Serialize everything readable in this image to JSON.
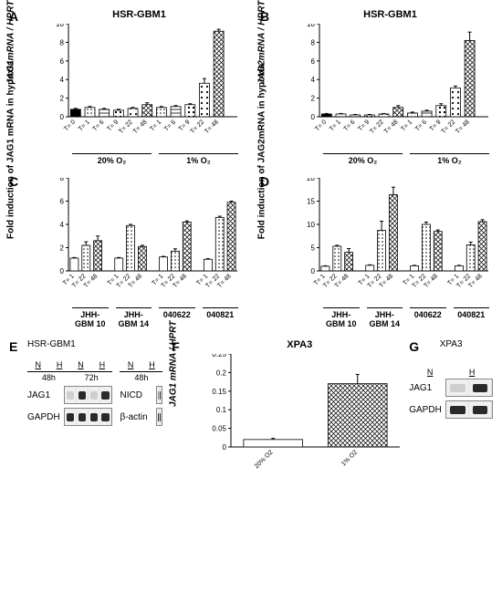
{
  "panelA": {
    "label": "A",
    "title": "HSR-GBM1",
    "ylabel": "JAG1mRNA / HPRT",
    "type": "bar",
    "ylim": [
      0,
      10
    ],
    "ytick_step": 2,
    "groups": [
      "20% O₂",
      "1% O₂"
    ],
    "ticks": [
      "T= 0",
      "T= 1",
      "T= 6",
      "T= 9",
      "T= 22",
      "T= 48",
      "T= 1",
      "T= 6",
      "T= 9",
      "T= 22",
      "T= 48"
    ],
    "values": [
      0.8,
      1.0,
      0.8,
      0.7,
      0.9,
      1.3,
      1.0,
      1.1,
      1.3,
      3.6,
      9.2
    ],
    "err": [
      0.1,
      0.1,
      0.1,
      0.1,
      0.1,
      0.2,
      0.1,
      0.1,
      0.1,
      0.5,
      0.2
    ],
    "patterns": [
      "solid",
      "dots",
      "hlines",
      "squares",
      "ldots",
      "cross",
      "dots",
      "hlines",
      "squares",
      "ldots",
      "cross"
    ],
    "colors": {
      "bar_fill": "#ffffff",
      "bar_stroke": "#000000",
      "bg": "#ffffff",
      "axis": "#000000"
    },
    "bar_width": 0.7,
    "label_fontsize": 9
  },
  "panelB": {
    "label": "B",
    "title": "HSR-GBM1",
    "ylabel": "JAG2mRNA / HPRT",
    "type": "bar",
    "ylim": [
      0,
      10
    ],
    "ytick_step": 2,
    "groups": [
      "20% O₂",
      "1% O₂"
    ],
    "ticks": [
      "T= 0",
      "T= 1",
      "T= 6",
      "T= 9",
      "T= 22",
      "T= 48",
      "T= 1",
      "T= 6",
      "T= 9",
      "T= 22",
      "T= 48"
    ],
    "values": [
      0.3,
      0.3,
      0.2,
      0.2,
      0.3,
      1.0,
      0.4,
      0.6,
      1.2,
      3.1,
      8.2
    ],
    "err": [
      0.05,
      0.05,
      0.05,
      0.05,
      0.05,
      0.2,
      0.1,
      0.1,
      0.2,
      0.2,
      0.9
    ],
    "patterns": [
      "solid",
      "dots",
      "hlines",
      "squares",
      "ldots",
      "cross",
      "dots",
      "hlines",
      "squares",
      "ldots",
      "cross"
    ],
    "colors": {
      "bar_fill": "#ffffff",
      "bar_stroke": "#000000",
      "bg": "#ffffff",
      "axis": "#000000"
    },
    "bar_width": 0.7,
    "label_fontsize": 9
  },
  "panelC": {
    "label": "C",
    "ylabel": "Fold induction of JAG1 mRNA in hypoxia",
    "type": "bar",
    "ylim": [
      0,
      8
    ],
    "ytick_step": 2,
    "groups": [
      "JHH-GBM 10",
      "JHH-GBM 14",
      "040622",
      "040821"
    ],
    "ticks": [
      "T= 1",
      "T= 22",
      "T= 48",
      "T= 1",
      "T= 22",
      "T= 48",
      "T= 1",
      "T= 22",
      "T= 48",
      "T= 1",
      "T= 22",
      "T= 48"
    ],
    "values": [
      1.1,
      2.2,
      2.6,
      1.1,
      3.9,
      2.1,
      1.2,
      1.7,
      4.2,
      1.0,
      4.6,
      5.9
    ],
    "err": [
      0.05,
      0.3,
      0.4,
      0.05,
      0.1,
      0.1,
      0.05,
      0.2,
      0.1,
      0.05,
      0.1,
      0.1
    ],
    "patterns": [
      "open",
      "dots",
      "cross",
      "open",
      "dots",
      "cross",
      "open",
      "dots",
      "cross",
      "open",
      "dots",
      "cross"
    ],
    "colors": {
      "bar_fill": "#ffffff",
      "bar_stroke": "#000000",
      "bg": "#ffffff",
      "axis": "#000000"
    },
    "bar_width": 0.7,
    "label_fontsize": 9
  },
  "panelD": {
    "label": "D",
    "ylabel": "Fold induction of JAG2mRNA in hypoxia",
    "type": "bar",
    "ylim": [
      0,
      20
    ],
    "ytick_step": 5,
    "groups": [
      "JHH-GBM 10",
      "JHH-GBM 14",
      "040622",
      "040821"
    ],
    "ticks": [
      "T= 1",
      "T= 22",
      "T= 48",
      "T= 1",
      "T= 22",
      "T= 48",
      "T= 1",
      "T= 22",
      "T= 48",
      "T= 1",
      "T= 22",
      "T= 48"
    ],
    "values": [
      1.0,
      5.3,
      4.0,
      1.2,
      8.7,
      16.4,
      1.1,
      10.0,
      8.5,
      1.1,
      5.6,
      10.6
    ],
    "err": [
      0.1,
      0.2,
      0.8,
      0.1,
      2.0,
      1.6,
      0.1,
      0.5,
      0.3,
      0.1,
      0.6,
      0.4
    ],
    "patterns": [
      "open",
      "dots",
      "cross",
      "open",
      "dots",
      "cross",
      "open",
      "dots",
      "cross",
      "open",
      "dots",
      "cross"
    ],
    "colors": {
      "bar_fill": "#ffffff",
      "bar_stroke": "#000000",
      "bg": "#ffffff",
      "axis": "#000000"
    },
    "bar_width": 0.7,
    "label_fontsize": 9
  },
  "panelE": {
    "label": "E",
    "title": "HSR-GBM1",
    "left": {
      "conditions": [
        "N",
        "H",
        "N",
        "H"
      ],
      "times": [
        "48h",
        "72h"
      ],
      "rows": [
        {
          "name": "JAG1",
          "bands": [
            "faint",
            "dark",
            "faint",
            "dark"
          ]
        },
        {
          "name": "GAPDH",
          "bands": [
            "dark",
            "dark",
            "dark",
            "dark"
          ]
        }
      ]
    },
    "right": {
      "conditions": [
        "N",
        "H"
      ],
      "times": [
        "48h"
      ],
      "rows": [
        {
          "name": "NICD",
          "bands": [
            "med",
            "dark"
          ]
        },
        {
          "name": "β-actin",
          "bands": [
            "dark",
            "dark"
          ]
        }
      ]
    }
  },
  "panelF": {
    "label": "F",
    "title": "XPA3",
    "ylabel": "JAG1 mRNA / HPRT",
    "type": "bar",
    "ylim": [
      0,
      0.25
    ],
    "ytick_step": 0.05,
    "ticks": [
      "20% O2",
      "1% O2"
    ],
    "values": [
      0.02,
      0.17
    ],
    "err": [
      0.003,
      0.025
    ],
    "patterns": [
      "open",
      "cross"
    ],
    "colors": {
      "bar_fill": "#ffffff",
      "bar_stroke": "#000000",
      "bg": "#ffffff",
      "axis": "#000000"
    },
    "bar_width": 0.7,
    "label_fontsize": 9
  },
  "panelG": {
    "label": "G",
    "title": "XPA3",
    "conditions": [
      "N",
      "H"
    ],
    "rows": [
      {
        "name": "JAG1",
        "bands": [
          "faint",
          "dark"
        ]
      },
      {
        "name": "GAPDH",
        "bands": [
          "dark",
          "dark"
        ]
      }
    ]
  }
}
